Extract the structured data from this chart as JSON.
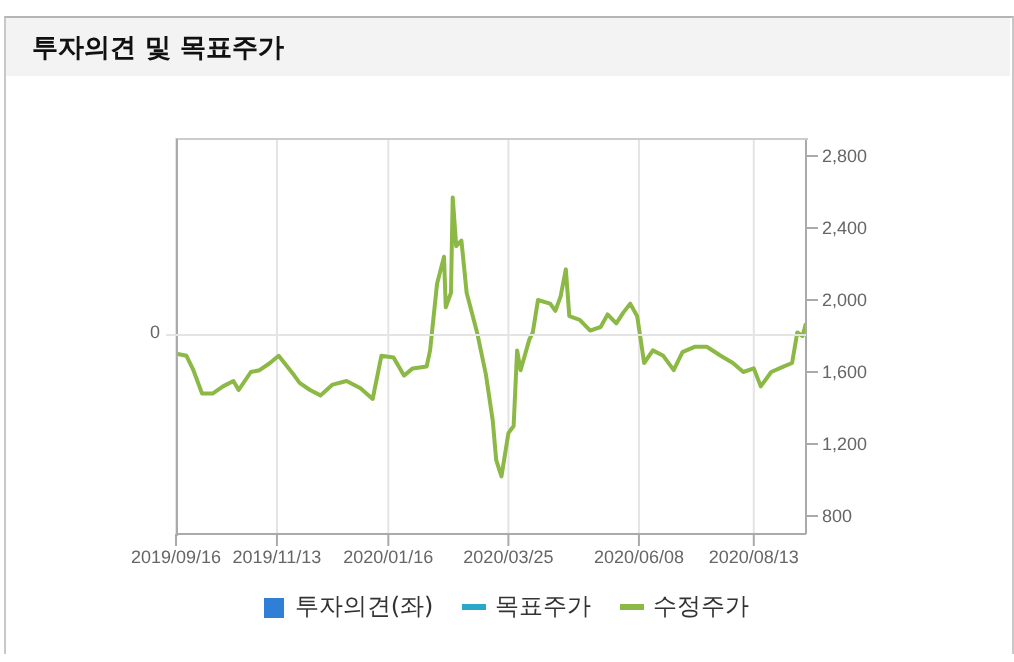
{
  "chart_data": {
    "type": "line",
    "title": "투자의견 및 목표주가",
    "x": [
      "2019-09-17",
      "2019-09-22",
      "2019-09-26",
      "2019-10-01",
      "2019-10-07",
      "2019-10-13",
      "2019-10-19",
      "2019-10-22",
      "2019-10-29",
      "2019-11-03",
      "2019-11-09",
      "2019-11-14",
      "2019-11-23",
      "2019-11-26",
      "2019-12-02",
      "2019-12-08",
      "2019-12-15",
      "2019-12-23",
      "2019-12-31",
      "2020-01-07",
      "2020-01-12",
      "2020-01-19",
      "2020-01-25",
      "2020-01-30",
      "2020-02-07",
      "2020-02-09",
      "2020-02-13",
      "2020-02-17",
      "2020-02-18",
      "2020-02-21",
      "2020-02-22",
      "2020-02-24",
      "2020-02-27",
      "2020-03-01",
      "2020-03-07",
      "2020-03-12",
      "2020-03-16",
      "2020-03-18",
      "2020-03-21",
      "2020-03-25",
      "2020-03-28",
      "2020-03-30",
      "2020-04-01",
      "2020-04-06",
      "2020-04-08",
      "2020-04-11",
      "2020-04-18",
      "2020-04-21",
      "2020-04-24",
      "2020-04-27",
      "2020-04-29",
      "2020-05-05",
      "2020-05-11",
      "2020-05-17",
      "2020-05-21",
      "2020-05-26",
      "2020-05-30",
      "2020-06-03",
      "2020-06-07",
      "2020-06-11",
      "2020-06-16",
      "2020-06-22",
      "2020-06-28",
      "2020-07-03",
      "2020-07-10",
      "2020-07-17",
      "2020-07-25",
      "2020-08-01",
      "2020-08-07",
      "2020-08-13",
      "2020-08-17",
      "2020-08-23",
      "2020-08-30",
      "2020-09-04",
      "2020-09-07",
      "2020-09-10",
      "2020-09-12"
    ],
    "series": [
      {
        "name": "투자의견(좌)",
        "type": "bar",
        "color": "#2f7fd6",
        "values": [
          null,
          null,
          null,
          null,
          null,
          null,
          null,
          null,
          null,
          null,
          null,
          null,
          null,
          null,
          null,
          null,
          null,
          null,
          null,
          null,
          null,
          null,
          null,
          null,
          null,
          null,
          null,
          null,
          null,
          null,
          null,
          null,
          null,
          null,
          null,
          null,
          null,
          null,
          null,
          null,
          null,
          null,
          null,
          null,
          null,
          null,
          null,
          null,
          null,
          null,
          null,
          null,
          null,
          null,
          null,
          null,
          null,
          null,
          null,
          null,
          null,
          null,
          null,
          null,
          null,
          null,
          null,
          null,
          null,
          null,
          null,
          null,
          null,
          null,
          null,
          null,
          null
        ]
      },
      {
        "name": "목표주가",
        "type": "line",
        "axis": "y2",
        "color": "#29a8c8",
        "values": [
          null,
          null,
          null,
          null,
          null,
          null,
          null,
          null,
          null,
          null,
          null,
          null,
          null,
          null,
          null,
          null,
          null,
          null,
          null,
          null,
          null,
          null,
          null,
          null,
          null,
          null,
          null,
          null,
          null,
          null,
          null,
          null,
          null,
          null,
          null,
          null,
          null,
          null,
          null,
          null,
          null,
          null,
          null,
          null,
          null,
          null,
          null,
          null,
          null,
          null,
          null,
          null,
          null,
          null,
          null,
          null,
          null,
          null,
          null,
          null,
          null,
          null,
          null,
          null,
          null,
          null,
          null,
          null,
          null,
          null,
          null,
          null,
          null,
          null,
          null,
          null,
          null
        ]
      },
      {
        "name": "수정주가",
        "axis": "y2",
        "color": "#8cb845",
        "values": [
          1700,
          1690,
          1610,
          1480,
          1480,
          1520,
          1550,
          1500,
          1600,
          1610,
          1650,
          1690,
          1580,
          1540,
          1500,
          1470,
          1530,
          1550,
          1510,
          1450,
          1690,
          1680,
          1580,
          1620,
          1630,
          1720,
          2090,
          2240,
          1960,
          2040,
          2570,
          2300,
          2330,
          2040,
          1820,
          1590,
          1330,
          1110,
          1020,
          1260,
          1300,
          1720,
          1610,
          1780,
          1820,
          2000,
          1980,
          1940,
          2020,
          2170,
          1910,
          1890,
          1830,
          1850,
          1920,
          1870,
          1930,
          1980,
          1910,
          1650,
          1720,
          1690,
          1610,
          1710,
          1740,
          1740,
          1690,
          1650,
          1600,
          1620,
          1520,
          1600,
          1630,
          1650,
          1820,
          1800,
          1870
        ]
      }
    ],
    "xlim": [
      "2019-09-16",
      "2020-09-12"
    ],
    "xticks": [
      {
        "value": "2019-09-16",
        "label": "2019/09/16"
      },
      {
        "value": "2019-11-13",
        "label": "2019/11/13"
      },
      {
        "value": "2020-01-16",
        "label": "2020/01/16"
      },
      {
        "value": "2020-03-25",
        "label": "2020/03/25"
      },
      {
        "value": "2020-06-08",
        "label": "2020/06/08"
      },
      {
        "value": "2020-08-13",
        "label": "2020/08/13"
      }
    ],
    "annotations": [
      "0"
    ],
    "y2lim": [
      700,
      2900
    ],
    "y2ticks": [
      {
        "value": 800,
        "label": "800"
      },
      {
        "value": 1200,
        "label": "1,200"
      },
      {
        "value": 1600,
        "label": "1,600"
      },
      {
        "value": 2000,
        "label": "2,000"
      },
      {
        "value": 2400,
        "label": "2,400"
      },
      {
        "value": 2800,
        "label": "2,800"
      }
    ],
    "grid": "x",
    "legend": "bottom",
    "marker": "none",
    "line_style": "solid"
  }
}
